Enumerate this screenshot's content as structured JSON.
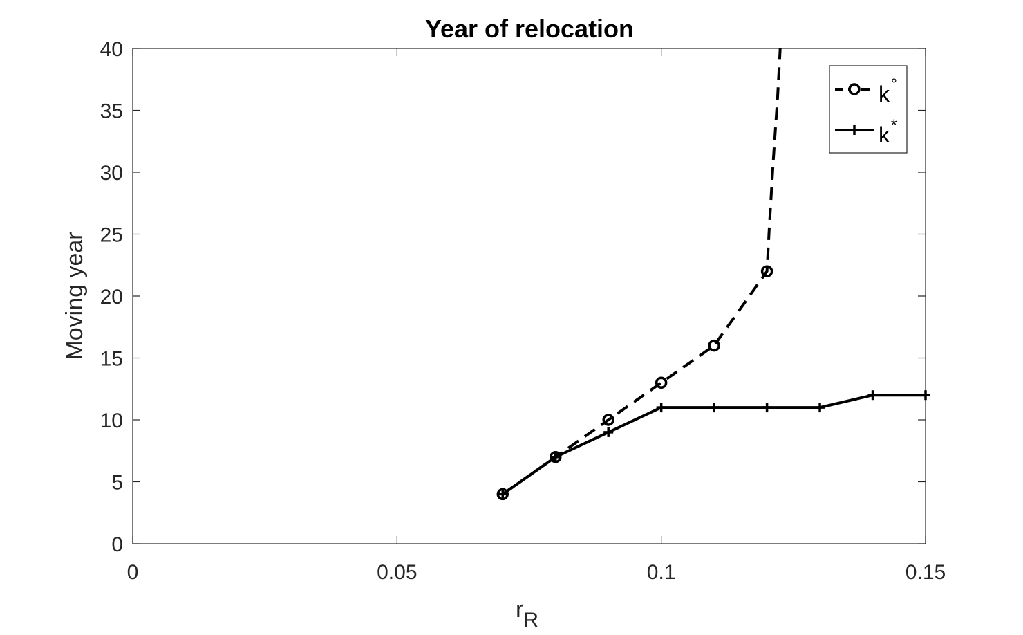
{
  "chart_data": {
    "type": "line",
    "title": "Year of relocation",
    "xlabel": "r",
    "xlabel_subscript": "R",
    "ylabel": "Moving year",
    "xlim": [
      0,
      0.15
    ],
    "ylim": [
      0,
      40
    ],
    "xticks": [
      "0",
      "0.05",
      "0.1",
      "0.15"
    ],
    "xtick_values": [
      0,
      0.05,
      0.1,
      0.15
    ],
    "yticks": [
      "0",
      "5",
      "10",
      "15",
      "20",
      "25",
      "30",
      "35",
      "40"
    ],
    "ytick_values": [
      0,
      5,
      10,
      15,
      20,
      25,
      30,
      35,
      40
    ],
    "grid": false,
    "legend_position": "top-right",
    "series": [
      {
        "name": "k",
        "name_superscript": "°",
        "line_style": "dashed",
        "marker": "circle",
        "color": "#000000",
        "x": [
          0.07,
          0.08,
          0.09,
          0.1,
          0.11,
          0.12
        ],
        "y": [
          4,
          7,
          10,
          13,
          16,
          22
        ],
        "continuation": {
          "x": [
            0.12,
            0.1205,
            0.1212,
            0.122,
            0.1225
          ],
          "y": [
            22,
            26,
            31,
            36,
            40
          ]
        }
      },
      {
        "name": "k",
        "name_superscript": "*",
        "line_style": "solid",
        "marker": "plus",
        "color": "#000000",
        "x": [
          0.07,
          0.08,
          0.09,
          0.1,
          0.11,
          0.12,
          0.13,
          0.14,
          0.15
        ],
        "y": [
          4,
          7,
          9,
          11,
          11,
          11,
          11,
          12,
          12
        ]
      }
    ]
  }
}
